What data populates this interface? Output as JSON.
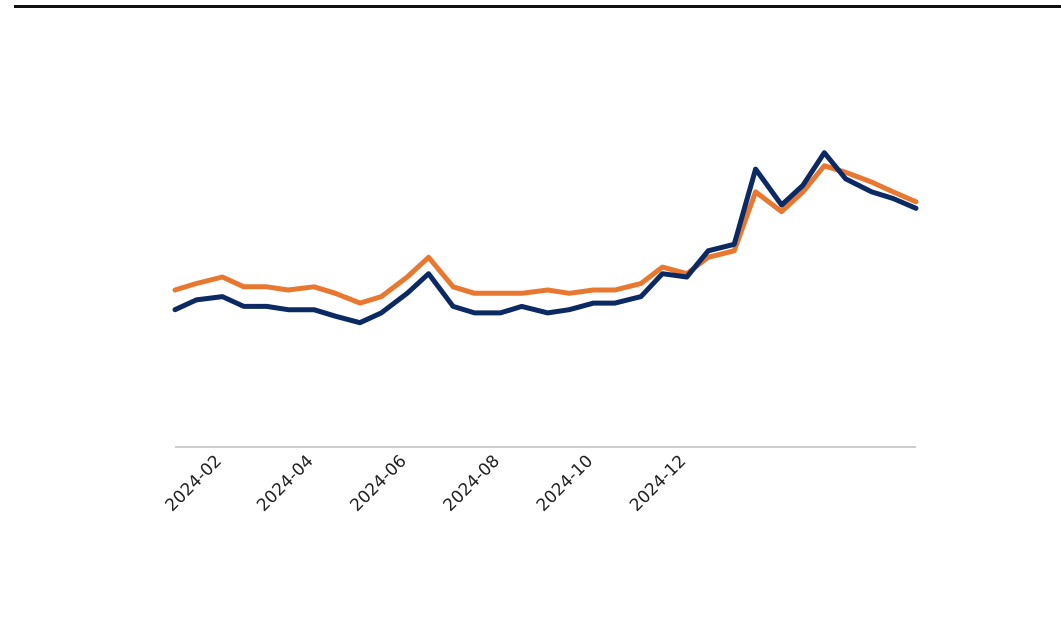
{
  "chart_data": {
    "type": "line",
    "title": "",
    "xlabel": "",
    "ylabel": "",
    "x_ticks": [
      "2024-02",
      "2024-04",
      "2024-06",
      "2024-08",
      "2024-10",
      "2024-12"
    ],
    "x_range": [
      "2024-01-01",
      "2025-04-30"
    ],
    "grid": false,
    "legend": "none",
    "colors": {
      "orange": "#e8782f",
      "navy": "#0b2a63",
      "baseline": "#cccccc"
    },
    "series": [
      {
        "color": "#e8782f",
        "x": [
          "2024-01-01",
          "2024-01-15",
          "2024-02-01",
          "2024-02-15",
          "2024-03-01",
          "2024-03-15",
          "2024-04-01",
          "2024-04-15",
          "2024-05-01",
          "2024-05-15",
          "2024-06-01",
          "2024-06-15",
          "2024-07-01",
          "2024-07-15",
          "2024-08-01",
          "2024-08-15",
          "2024-09-01",
          "2024-09-15",
          "2024-10-01",
          "2024-10-15",
          "2024-11-01",
          "2024-11-15",
          "2024-12-01",
          "2024-12-15",
          "2025-01-01",
          "2025-01-15",
          "2025-02-01",
          "2025-02-15",
          "2025-03-01",
          "2025-03-15",
          "2025-04-01",
          "2025-04-15",
          "2025-04-30"
        ],
        "values": [
          0.48,
          0.5,
          0.52,
          0.49,
          0.49,
          0.48,
          0.49,
          0.47,
          0.44,
          0.46,
          0.52,
          0.58,
          0.49,
          0.47,
          0.47,
          0.47,
          0.48,
          0.47,
          0.48,
          0.48,
          0.5,
          0.55,
          0.53,
          0.58,
          0.6,
          0.78,
          0.72,
          0.78,
          0.86,
          0.84,
          0.81,
          0.78,
          0.75
        ]
      },
      {
        "color": "#0b2a63",
        "x": [
          "2024-01-01",
          "2024-01-15",
          "2024-02-01",
          "2024-02-15",
          "2024-03-01",
          "2024-03-15",
          "2024-04-01",
          "2024-04-15",
          "2024-05-01",
          "2024-05-15",
          "2024-06-01",
          "2024-06-15",
          "2024-07-01",
          "2024-07-15",
          "2024-08-01",
          "2024-08-15",
          "2024-09-01",
          "2024-09-15",
          "2024-10-01",
          "2024-10-15",
          "2024-11-01",
          "2024-11-15",
          "2024-12-01",
          "2024-12-15",
          "2025-01-01",
          "2025-01-15",
          "2025-02-01",
          "2025-02-15",
          "2025-03-01",
          "2025-03-15",
          "2025-04-01",
          "2025-04-15",
          "2025-04-30"
        ],
        "values": [
          0.42,
          0.45,
          0.46,
          0.43,
          0.43,
          0.42,
          0.42,
          0.4,
          0.38,
          0.41,
          0.47,
          0.53,
          0.43,
          0.41,
          0.41,
          0.43,
          0.41,
          0.42,
          0.44,
          0.44,
          0.46,
          0.53,
          0.52,
          0.6,
          0.62,
          0.85,
          0.74,
          0.8,
          0.9,
          0.82,
          0.78,
          0.76,
          0.73
        ]
      }
    ]
  }
}
